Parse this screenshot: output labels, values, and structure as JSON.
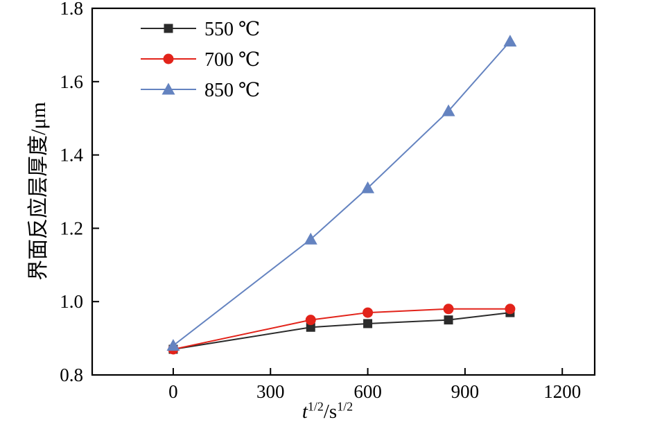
{
  "chart_data": {
    "type": "line",
    "title": "",
    "ylabel": "界面反应层厚度/μm",
    "xlabel_parts": {
      "var": "t",
      "sup1": "1/2",
      "mid": "/s",
      "sup2": "1/2"
    },
    "xlim": [
      -250,
      1300
    ],
    "ylim": [
      0.8,
      1.8
    ],
    "xticks": [
      0,
      300,
      600,
      900,
      1200
    ],
    "yticks": [
      0.8,
      1.0,
      1.2,
      1.4,
      1.6,
      1.8
    ],
    "grid": false,
    "legend_position": "top-left-inside",
    "frame_color": "#000000",
    "series": [
      {
        "name": "550 ℃",
        "color": "#2b2b2b",
        "marker": "square",
        "x": [
          0,
          424,
          600,
          849,
          1039
        ],
        "y": [
          0.87,
          0.93,
          0.94,
          0.95,
          0.97
        ]
      },
      {
        "name": "700 ℃",
        "color": "#e2231a",
        "marker": "circle",
        "x": [
          0,
          424,
          600,
          849,
          1039
        ],
        "y": [
          0.87,
          0.95,
          0.97,
          0.98,
          0.98
        ]
      },
      {
        "name": "850 ℃",
        "color": "#6483c0",
        "marker": "triangle",
        "x": [
          0,
          424,
          600,
          849,
          1039
        ],
        "y": [
          0.88,
          1.17,
          1.31,
          1.52,
          1.71
        ]
      }
    ]
  }
}
